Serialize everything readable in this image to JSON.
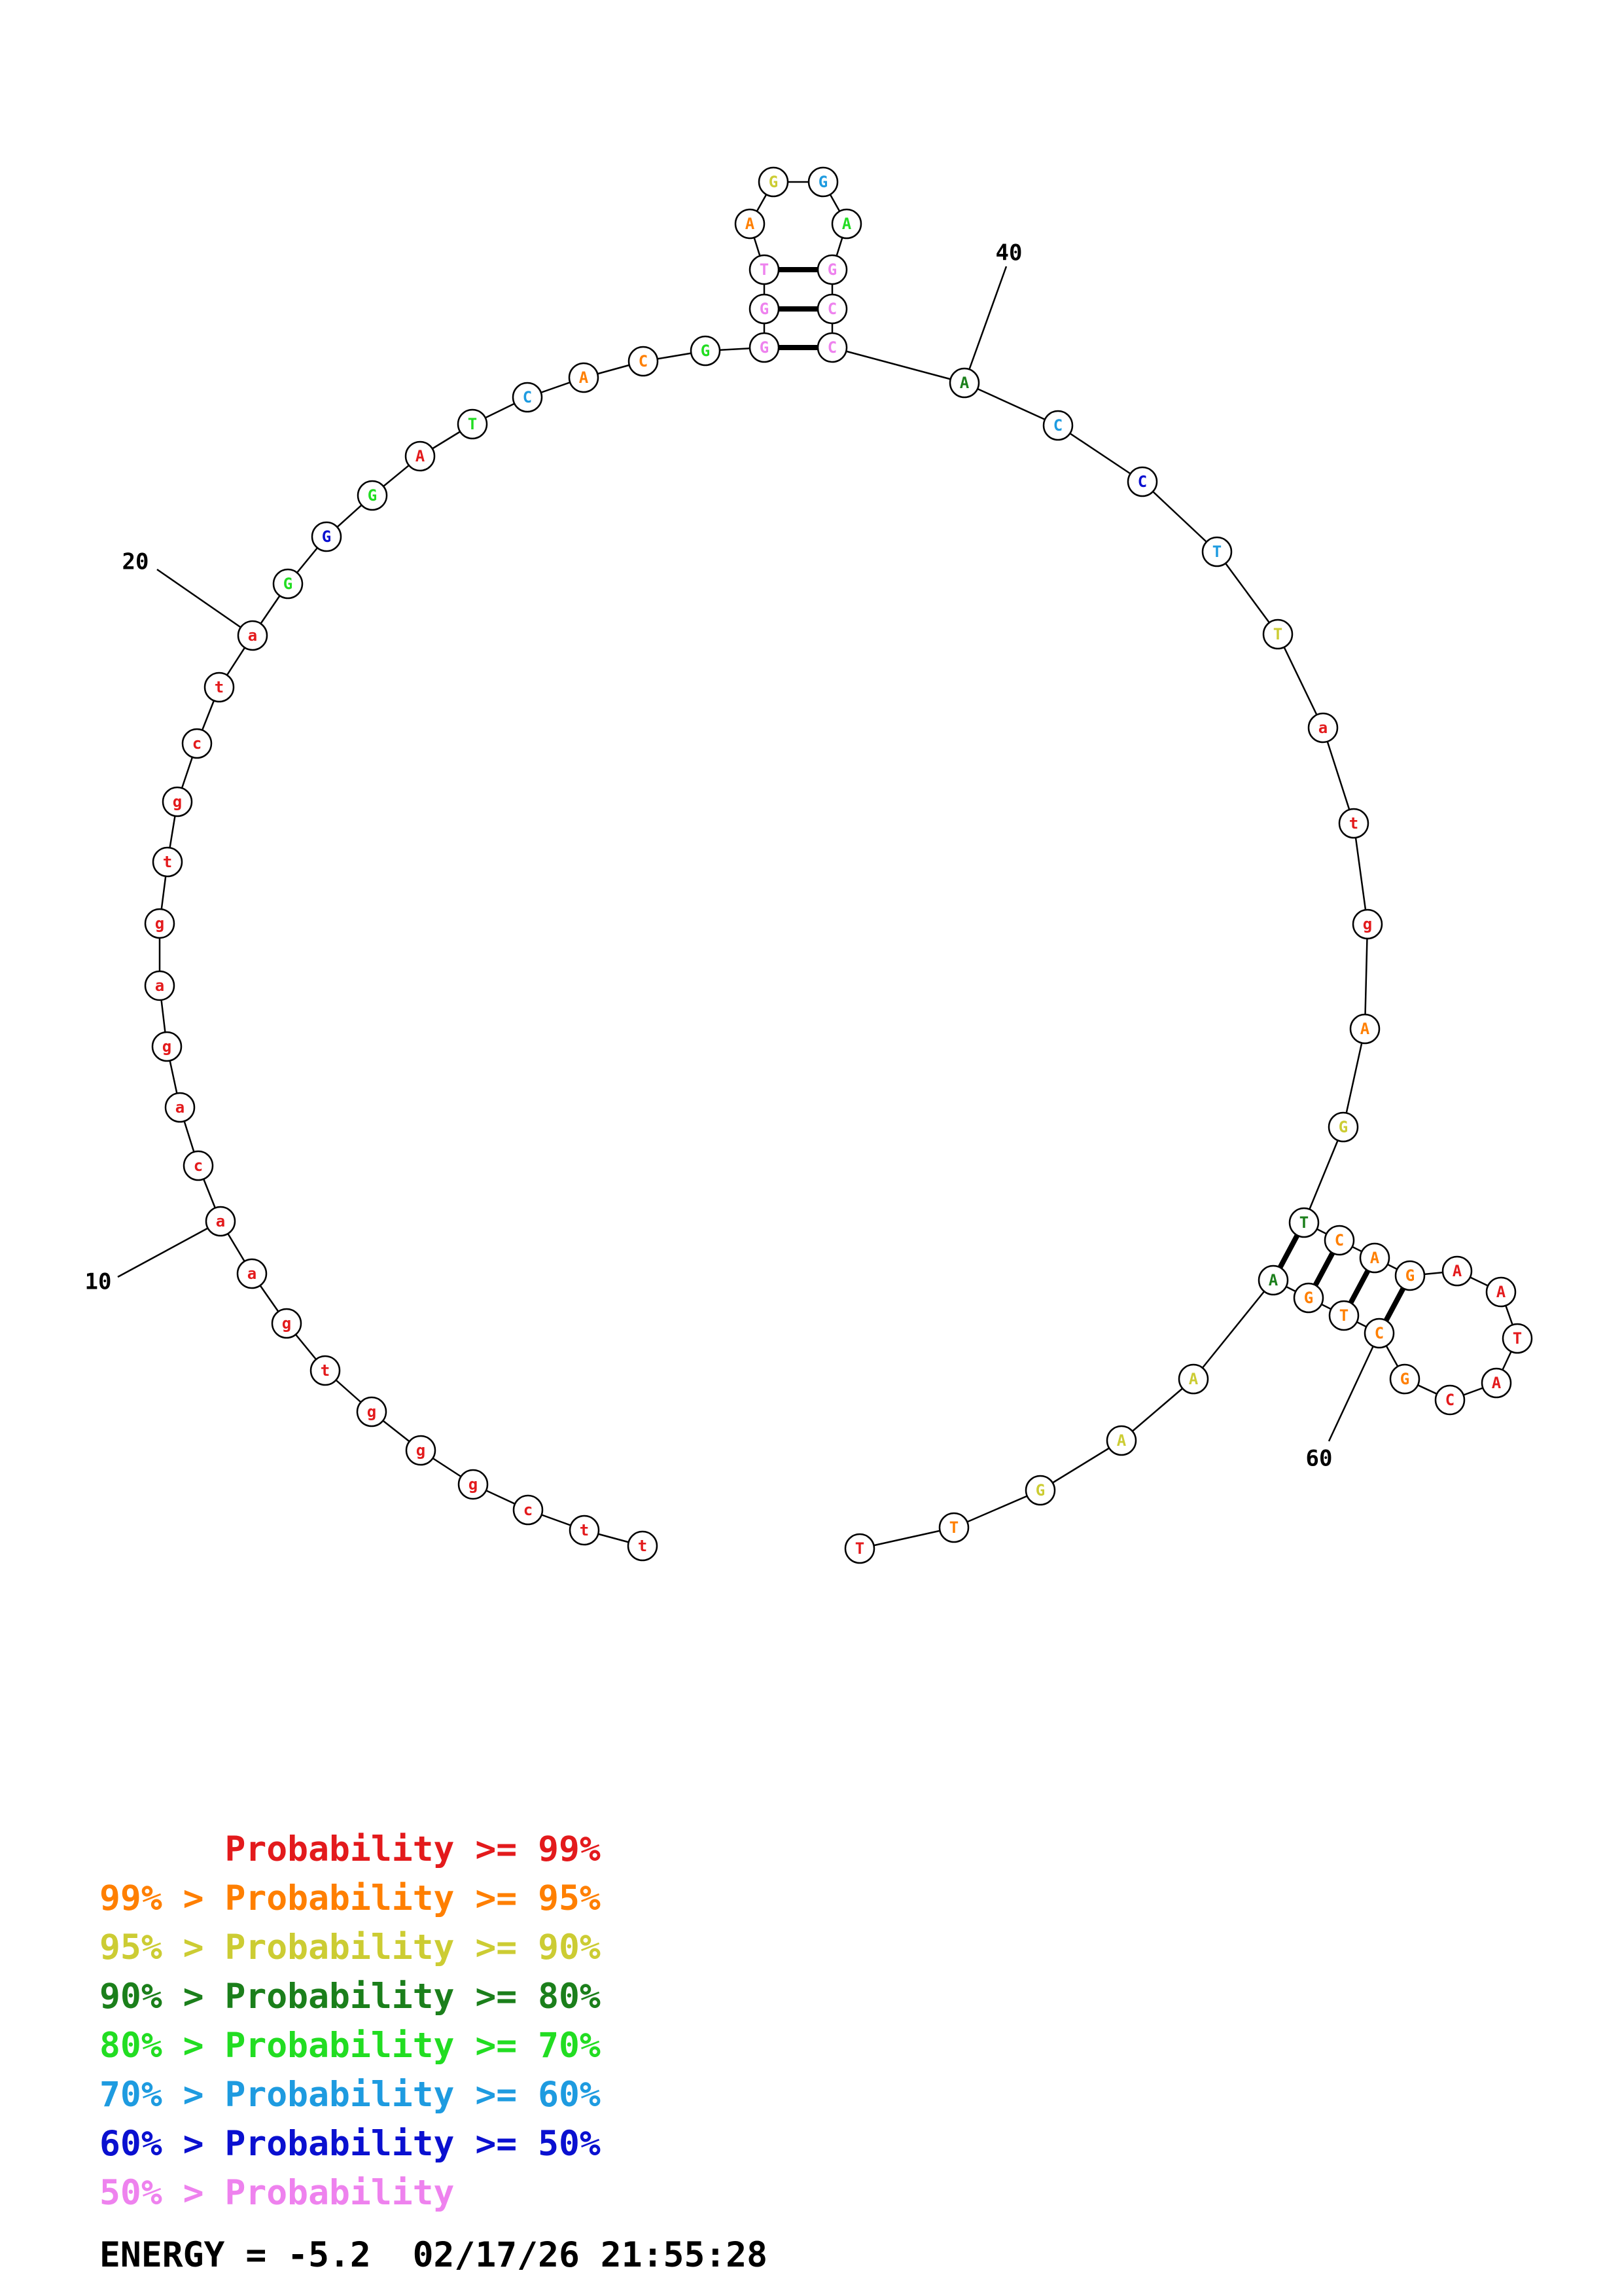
{
  "colors": {
    "p99": "#e31a1c",
    "p95": "#ff7f00",
    "p90": "#cccc33",
    "p80": "#1b7f1b",
    "p70": "#22dd22",
    "p60": "#1e9be0",
    "p50": "#0a10d0",
    "plow": "#ee82ee"
  },
  "nucleotides": [
    {
      "index": 1,
      "base": "t",
      "prob": "p99"
    },
    {
      "index": 2,
      "base": "t",
      "prob": "p99"
    },
    {
      "index": 3,
      "base": "c",
      "prob": "p99"
    },
    {
      "index": 4,
      "base": "g",
      "prob": "p99"
    },
    {
      "index": 5,
      "base": "g",
      "prob": "p99"
    },
    {
      "index": 6,
      "base": "g",
      "prob": "p99"
    },
    {
      "index": 7,
      "base": "t",
      "prob": "p99"
    },
    {
      "index": 8,
      "base": "g",
      "prob": "p99"
    },
    {
      "index": 9,
      "base": "a",
      "prob": "p99"
    },
    {
      "index": 10,
      "base": "a",
      "prob": "p99"
    },
    {
      "index": 11,
      "base": "c",
      "prob": "p99"
    },
    {
      "index": 12,
      "base": "a",
      "prob": "p99"
    },
    {
      "index": 13,
      "base": "g",
      "prob": "p99"
    },
    {
      "index": 14,
      "base": "a",
      "prob": "p99"
    },
    {
      "index": 15,
      "base": "g",
      "prob": "p99"
    },
    {
      "index": 16,
      "base": "t",
      "prob": "p99"
    },
    {
      "index": 17,
      "base": "g",
      "prob": "p99"
    },
    {
      "index": 18,
      "base": "c",
      "prob": "p99"
    },
    {
      "index": 19,
      "base": "t",
      "prob": "p99"
    },
    {
      "index": 20,
      "base": "a",
      "prob": "p99"
    },
    {
      "index": 21,
      "base": "G",
      "prob": "p70"
    },
    {
      "index": 22,
      "base": "G",
      "prob": "p50"
    },
    {
      "index": 23,
      "base": "G",
      "prob": "p70"
    },
    {
      "index": 24,
      "base": "A",
      "prob": "p99"
    },
    {
      "index": 25,
      "base": "T",
      "prob": "p70"
    },
    {
      "index": 26,
      "base": "C",
      "prob": "p60"
    },
    {
      "index": 27,
      "base": "A",
      "prob": "p95"
    },
    {
      "index": 28,
      "base": "C",
      "prob": "p95"
    },
    {
      "index": 29,
      "base": "G",
      "prob": "p70"
    },
    {
      "index": 30,
      "base": "G",
      "prob": "plow"
    },
    {
      "index": 31,
      "base": "G",
      "prob": "plow"
    },
    {
      "index": 32,
      "base": "T",
      "prob": "plow"
    },
    {
      "index": 33,
      "base": "A",
      "prob": "p95"
    },
    {
      "index": 34,
      "base": "G",
      "prob": "p90"
    },
    {
      "index": 35,
      "base": "G",
      "prob": "p60"
    },
    {
      "index": 36,
      "base": "A",
      "prob": "p70"
    },
    {
      "index": 37,
      "base": "G",
      "prob": "plow"
    },
    {
      "index": 38,
      "base": "C",
      "prob": "plow"
    },
    {
      "index": 39,
      "base": "C",
      "prob": "plow"
    },
    {
      "index": 40,
      "base": "A",
      "prob": "p80"
    },
    {
      "index": 41,
      "base": "C",
      "prob": "p60"
    },
    {
      "index": 42,
      "base": "C",
      "prob": "p50"
    },
    {
      "index": 43,
      "base": "T",
      "prob": "p60"
    },
    {
      "index": 44,
      "base": "T",
      "prob": "p90"
    },
    {
      "index": 45,
      "base": "a",
      "prob": "p99"
    },
    {
      "index": 46,
      "base": "t",
      "prob": "p99"
    },
    {
      "index": 47,
      "base": "g",
      "prob": "p99"
    },
    {
      "index": 48,
      "base": "A",
      "prob": "p95"
    },
    {
      "index": 49,
      "base": "G",
      "prob": "p90"
    },
    {
      "index": 50,
      "base": "T",
      "prob": "p80"
    },
    {
      "index": 51,
      "base": "C",
      "prob": "p95"
    },
    {
      "index": 52,
      "base": "A",
      "prob": "p95"
    },
    {
      "index": 53,
      "base": "G",
      "prob": "p95"
    },
    {
      "index": 54,
      "base": "A",
      "prob": "p99"
    },
    {
      "index": 55,
      "base": "A",
      "prob": "p99"
    },
    {
      "index": 56,
      "base": "T",
      "prob": "p99"
    },
    {
      "index": 57,
      "base": "A",
      "prob": "p99"
    },
    {
      "index": 58,
      "base": "C",
      "prob": "p99"
    },
    {
      "index": 59,
      "base": "G",
      "prob": "p95"
    },
    {
      "index": 60,
      "base": "C",
      "prob": "p95"
    },
    {
      "index": 61,
      "base": "T",
      "prob": "p95"
    },
    {
      "index": 62,
      "base": "G",
      "prob": "p95"
    },
    {
      "index": 63,
      "base": "A",
      "prob": "p80"
    },
    {
      "index": 64,
      "base": "A",
      "prob": "p90"
    },
    {
      "index": 65,
      "base": "A",
      "prob": "p90"
    },
    {
      "index": 66,
      "base": "G",
      "prob": "p90"
    },
    {
      "index": 67,
      "base": "T",
      "prob": "p95"
    },
    {
      "index": 68,
      "base": "T",
      "prob": "p99"
    }
  ],
  "base_pairs": [
    [
      30,
      39
    ],
    [
      31,
      38
    ],
    [
      32,
      37
    ],
    [
      50,
      63
    ],
    [
      51,
      62
    ],
    [
      52,
      61
    ],
    [
      53,
      60
    ]
  ],
  "number_labels": [
    "10",
    "20",
    "40",
    "60"
  ],
  "legend": [
    {
      "prefix": "",
      "text": "Probability >= 99%",
      "color": "p99"
    },
    {
      "prefix": "99% > ",
      "text": "Probability >= 95%",
      "color": "p95"
    },
    {
      "prefix": "95% > ",
      "text": "Probability >= 90%",
      "color": "p90"
    },
    {
      "prefix": "90% > ",
      "text": "Probability >= 80%",
      "color": "p80"
    },
    {
      "prefix": "80% > ",
      "text": "Probability >= 70%",
      "color": "p70"
    },
    {
      "prefix": "70% > ",
      "text": "Probability >= 60%",
      "color": "p60"
    },
    {
      "prefix": "60% > ",
      "text": "Probability >= 50%",
      "color": "p50"
    },
    {
      "prefix": "50% > ",
      "text": "Probability",
      "color": "plow"
    }
  ],
  "energy": "ENERGY = -5.2  02/17/26 21:55:28"
}
